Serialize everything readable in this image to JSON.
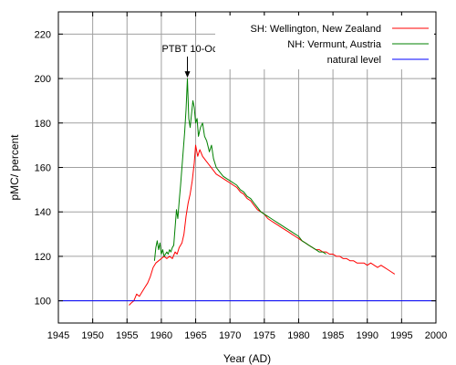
{
  "chart_data": {
    "type": "line",
    "title": "",
    "xlabel": "Year (AD)",
    "ylabel": "pMC/ percent",
    "xlim": [
      1945,
      2000
    ],
    "ylim": [
      90,
      230
    ],
    "x_ticks": [
      1945,
      1950,
      1955,
      1960,
      1965,
      1970,
      1975,
      1980,
      1985,
      1990,
      1995,
      2000
    ],
    "y_ticks": [
      100,
      120,
      140,
      160,
      180,
      200,
      220
    ],
    "grid": true,
    "legend_position": "top-right",
    "annotation": {
      "text": "PTBT 10-Oct-1963",
      "x": 1963.8,
      "y": 200,
      "arrow": true
    },
    "series": [
      {
        "name": "SH: Wellington, New Zealand",
        "color": "#ff0000",
        "points": [
          [
            1955.3,
            98
          ],
          [
            1955.6,
            99
          ],
          [
            1956.0,
            100
          ],
          [
            1956.4,
            103
          ],
          [
            1956.8,
            102
          ],
          [
            1957.2,
            104
          ],
          [
            1957.6,
            106
          ],
          [
            1958.0,
            108
          ],
          [
            1958.4,
            111
          ],
          [
            1958.8,
            115
          ],
          [
            1959.2,
            117
          ],
          [
            1959.6,
            118
          ],
          [
            1960.0,
            119
          ],
          [
            1960.4,
            120
          ],
          [
            1960.8,
            119
          ],
          [
            1961.2,
            120
          ],
          [
            1961.6,
            119
          ],
          [
            1962.0,
            122
          ],
          [
            1962.3,
            121
          ],
          [
            1962.6,
            124
          ],
          [
            1963.0,
            126
          ],
          [
            1963.3,
            130
          ],
          [
            1963.6,
            138
          ],
          [
            1963.9,
            144
          ],
          [
            1964.2,
            148
          ],
          [
            1964.5,
            154
          ],
          [
            1964.8,
            162
          ],
          [
            1965.0,
            170
          ],
          [
            1965.3,
            165
          ],
          [
            1965.6,
            168
          ],
          [
            1966.0,
            165
          ],
          [
            1966.5,
            163
          ],
          [
            1967.0,
            161
          ],
          [
            1967.5,
            159
          ],
          [
            1968.0,
            157
          ],
          [
            1968.5,
            156
          ],
          [
            1969.0,
            155
          ],
          [
            1969.5,
            154
          ],
          [
            1970.0,
            153
          ],
          [
            1970.5,
            152
          ],
          [
            1971.0,
            151
          ],
          [
            1971.5,
            149
          ],
          [
            1972.0,
            148
          ],
          [
            1972.5,
            146
          ],
          [
            1973.0,
            145
          ],
          [
            1973.5,
            143
          ],
          [
            1974.0,
            141
          ],
          [
            1974.5,
            140
          ],
          [
            1975.0,
            139
          ],
          [
            1975.5,
            137
          ],
          [
            1976.0,
            136
          ],
          [
            1976.5,
            135
          ],
          [
            1977.0,
            134
          ],
          [
            1977.5,
            133
          ],
          [
            1978.0,
            132
          ],
          [
            1978.5,
            131
          ],
          [
            1979.0,
            130
          ],
          [
            1979.5,
            129
          ],
          [
            1980.0,
            128
          ],
          [
            1980.5,
            127
          ],
          [
            1981.0,
            126
          ],
          [
            1981.5,
            125
          ],
          [
            1982.0,
            124
          ],
          [
            1982.5,
            123
          ],
          [
            1983.0,
            123
          ],
          [
            1983.5,
            122
          ],
          [
            1984.0,
            122
          ],
          [
            1984.5,
            121
          ],
          [
            1985.0,
            121
          ],
          [
            1985.5,
            120
          ],
          [
            1986.0,
            120
          ],
          [
            1986.5,
            119
          ],
          [
            1987.0,
            119
          ],
          [
            1987.5,
            118
          ],
          [
            1988.0,
            118
          ],
          [
            1988.5,
            117
          ],
          [
            1989.0,
            117
          ],
          [
            1989.5,
            117
          ],
          [
            1990.0,
            116
          ],
          [
            1990.5,
            117
          ],
          [
            1991.0,
            116
          ],
          [
            1991.5,
            115
          ],
          [
            1992.0,
            116
          ],
          [
            1992.5,
            115
          ],
          [
            1993.0,
            114
          ],
          [
            1993.5,
            113
          ],
          [
            1994.0,
            112
          ]
        ]
      },
      {
        "name": "NH: Vermunt, Austria",
        "color": "#008000",
        "points": [
          [
            1959.0,
            118
          ],
          [
            1959.2,
            124
          ],
          [
            1959.4,
            127
          ],
          [
            1959.6,
            123
          ],
          [
            1959.8,
            126
          ],
          [
            1960.0,
            121
          ],
          [
            1960.2,
            123
          ],
          [
            1960.4,
            120
          ],
          [
            1960.6,
            121
          ],
          [
            1960.8,
            122
          ],
          [
            1961.0,
            121
          ],
          [
            1961.2,
            123
          ],
          [
            1961.4,
            122
          ],
          [
            1961.6,
            124
          ],
          [
            1961.8,
            125
          ],
          [
            1962.0,
            133
          ],
          [
            1962.2,
            141
          ],
          [
            1962.4,
            137
          ],
          [
            1962.6,
            145
          ],
          [
            1962.8,
            152
          ],
          [
            1963.0,
            160
          ],
          [
            1963.2,
            168
          ],
          [
            1963.4,
            176
          ],
          [
            1963.6,
            186
          ],
          [
            1963.8,
            200
          ],
          [
            1964.0,
            182
          ],
          [
            1964.2,
            178
          ],
          [
            1964.4,
            184
          ],
          [
            1964.6,
            190
          ],
          [
            1964.8,
            187
          ],
          [
            1965.0,
            180
          ],
          [
            1965.2,
            182
          ],
          [
            1965.4,
            174
          ],
          [
            1965.7,
            178
          ],
          [
            1966.0,
            180
          ],
          [
            1966.3,
            174
          ],
          [
            1966.6,
            172
          ],
          [
            1967.0,
            167
          ],
          [
            1967.3,
            170
          ],
          [
            1967.6,
            164
          ],
          [
            1968.0,
            160
          ],
          [
            1968.5,
            158
          ],
          [
            1969.0,
            156
          ],
          [
            1969.5,
            155
          ],
          [
            1970.0,
            154
          ],
          [
            1970.5,
            153
          ],
          [
            1971.0,
            152
          ],
          [
            1971.5,
            150
          ],
          [
            1972.0,
            149
          ],
          [
            1972.5,
            147
          ],
          [
            1973.0,
            146
          ],
          [
            1973.5,
            144
          ],
          [
            1974.0,
            142
          ],
          [
            1974.5,
            140
          ],
          [
            1975.0,
            139
          ],
          [
            1975.5,
            138
          ],
          [
            1976.0,
            137
          ],
          [
            1976.5,
            136
          ],
          [
            1977.0,
            135
          ],
          [
            1977.5,
            134
          ],
          [
            1978.0,
            133
          ],
          [
            1978.5,
            132
          ],
          [
            1979.0,
            131
          ],
          [
            1979.5,
            130
          ],
          [
            1980.0,
            129
          ],
          [
            1980.5,
            127
          ],
          [
            1981.0,
            126
          ],
          [
            1981.5,
            125
          ],
          [
            1982.0,
            124
          ],
          [
            1982.5,
            123
          ],
          [
            1983.0,
            122
          ],
          [
            1983.5,
            122
          ],
          [
            1984.0,
            121
          ]
        ]
      },
      {
        "name": "natural level",
        "color": "#0000ff",
        "points": [
          [
            1945,
            100
          ],
          [
            2000,
            100
          ]
        ]
      }
    ]
  }
}
